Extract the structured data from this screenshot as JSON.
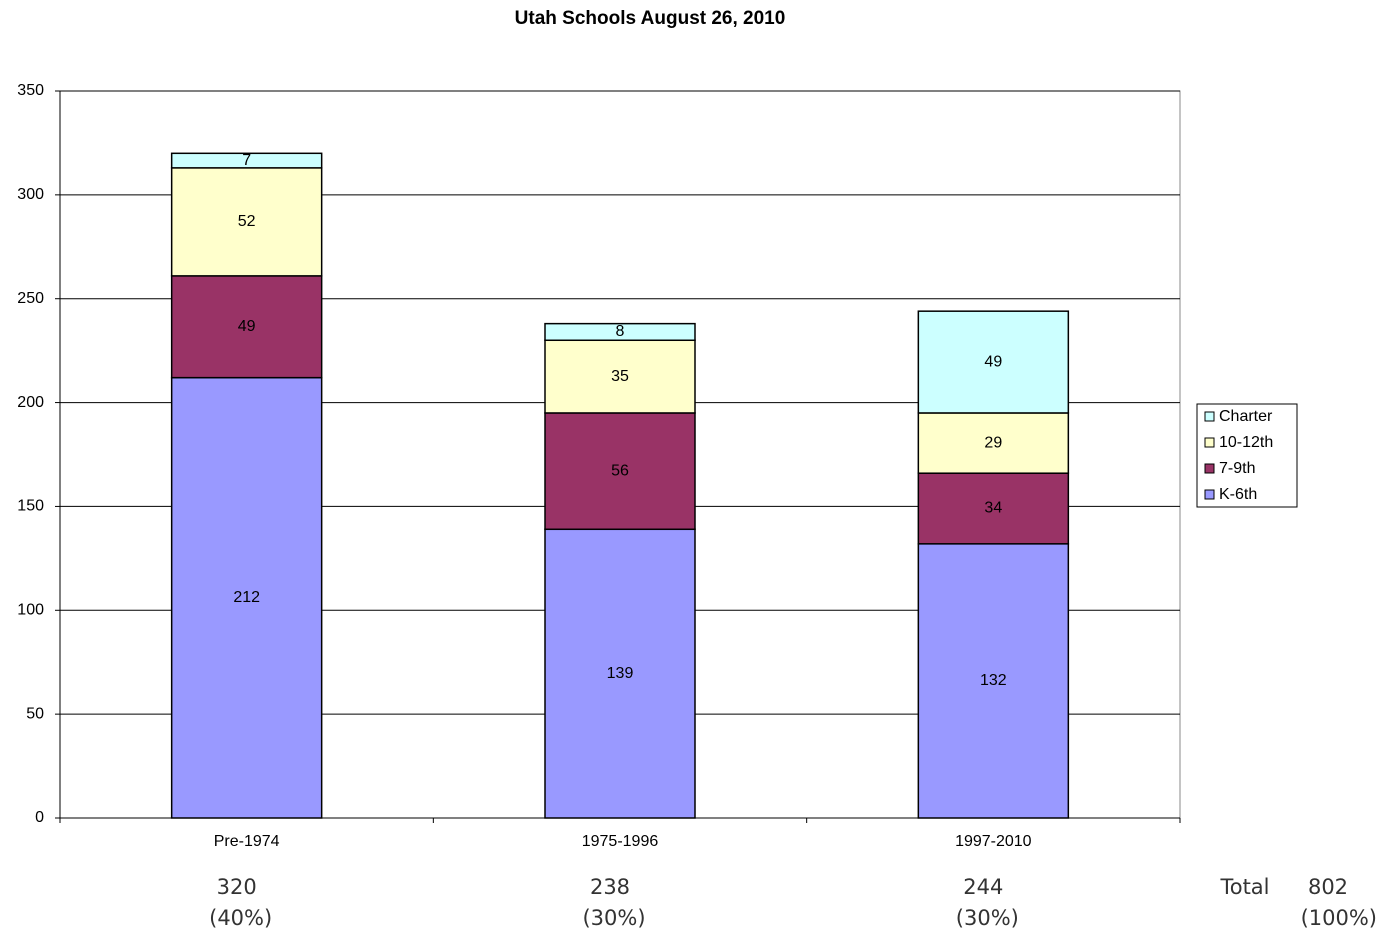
{
  "chart_data": {
    "type": "stacked_bar",
    "title": "Utah Schools August 26, 2010",
    "categories": [
      "Pre-1974",
      "1975-1996",
      "1997-2010"
    ],
    "series": [
      {
        "name": "K-6th",
        "color": "#9999ff",
        "values": [
          212,
          139,
          132
        ]
      },
      {
        "name": "7-9th",
        "color": "#993366",
        "values": [
          49,
          56,
          34
        ]
      },
      {
        "name": "10-12th",
        "color": "#ffffcc",
        "values": [
          52,
          35,
          29
        ]
      },
      {
        "name": "Charter",
        "color": "#ccffff",
        "values": [
          7,
          8,
          49
        ]
      }
    ],
    "ylim": [
      0,
      350
    ],
    "yticks": [
      0,
      50,
      100,
      150,
      200,
      250,
      300,
      350
    ],
    "grid": true,
    "legend": "right",
    "footer": {
      "totals": [
        320,
        238,
        244
      ],
      "shares": [
        {
          "value": 40,
          "label": "(40%)"
        },
        {
          "value": 30,
          "label": "(30%)"
        },
        {
          "value": 30,
          "label": "(30%)"
        }
      ],
      "total_label": "Total",
      "grand_total": 802,
      "grand_share": {
        "value": 100,
        "label": "(100%)"
      }
    }
  }
}
